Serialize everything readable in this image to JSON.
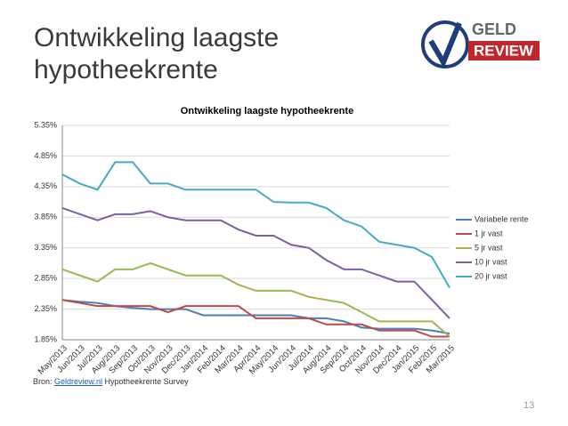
{
  "slide": {
    "title_lines": [
      "Ontwikkeling laagste",
      "hypotheekrente"
    ],
    "logo": {
      "top": "GELD",
      "bottom": "REVIEW"
    },
    "source": {
      "prefix": "Bron: ",
      "link": "Geldreview.nl",
      "suffix": " Hypotheekrente Survey"
    },
    "page_number": "13"
  },
  "chart_data": {
    "type": "line",
    "title": "Ontwikkeling laagste hypotheekrente",
    "categories": [
      "May/2013",
      "Jun/2013",
      "Jul/2013",
      "Aug/2013",
      "Sep/2013",
      "Oct/2013",
      "Nov/2013",
      "Dec/2013",
      "Jan/2014",
      "Feb/2014",
      "Mar/2014",
      "Apr/2014",
      "May/2014",
      "Jun/2014",
      "Jul/2014",
      "Aug/2014",
      "Sep/2014",
      "Oct/2014",
      "Nov/2014",
      "Dec/2014",
      "Jan/2015",
      "Feb/2015",
      "Mar/2015"
    ],
    "series": [
      {
        "name": "Variabele rente",
        "color": "#4a7ebb",
        "values": [
          2.5,
          2.47,
          2.45,
          2.4,
          2.37,
          2.35,
          2.35,
          2.35,
          2.25,
          2.25,
          2.25,
          2.25,
          2.25,
          2.25,
          2.2,
          2.2,
          2.15,
          2.05,
          2.03,
          2.03,
          2.03,
          2.0,
          1.95
        ]
      },
      {
        "name": "1 jr vast",
        "color": "#be4b48",
        "values": [
          2.5,
          2.45,
          2.4,
          2.4,
          2.4,
          2.4,
          2.3,
          2.4,
          2.4,
          2.4,
          2.4,
          2.2,
          2.2,
          2.2,
          2.2,
          2.1,
          2.1,
          2.1,
          2.0,
          2.0,
          2.0,
          1.9,
          1.9
        ]
      },
      {
        "name": "5 jr vast",
        "color": "#98b954",
        "values": [
          3.0,
          2.9,
          2.8,
          3.0,
          3.0,
          3.1,
          3.0,
          2.9,
          2.9,
          2.9,
          2.75,
          2.65,
          2.65,
          2.65,
          2.55,
          2.5,
          2.45,
          2.3,
          2.15,
          2.15,
          2.15,
          2.15,
          1.9
        ]
      },
      {
        "name": "10 jr vast",
        "color": "#7d60a0",
        "values": [
          4.0,
          3.9,
          3.8,
          3.9,
          3.9,
          3.95,
          3.85,
          3.8,
          3.8,
          3.8,
          3.65,
          3.55,
          3.55,
          3.4,
          3.35,
          3.15,
          3.0,
          3.0,
          2.9,
          2.8,
          2.8,
          2.5,
          2.2
        ]
      },
      {
        "name": "20 jr vast",
        "color": "#46aac5",
        "values": [
          4.55,
          4.4,
          4.3,
          4.75,
          4.75,
          4.4,
          4.4,
          4.3,
          4.3,
          4.3,
          4.3,
          4.3,
          4.1,
          4.09,
          4.09,
          4.0,
          3.8,
          3.7,
          3.45,
          3.4,
          3.35,
          3.2,
          2.7
        ]
      }
    ],
    "ylim": [
      1.85,
      5.35
    ],
    "yticks": [
      {
        "value": 1.85,
        "label": "1.85%"
      },
      {
        "value": 2.35,
        "label": "2.35%"
      },
      {
        "value": 2.85,
        "label": "2.85%"
      },
      {
        "value": 3.35,
        "label": "3.35%"
      },
      {
        "value": 3.85,
        "label": "3.85%"
      },
      {
        "value": 4.35,
        "label": "4.35%"
      },
      {
        "value": 4.85,
        "label": "4.85%"
      },
      {
        "value": 5.35,
        "label": "5.35%"
      }
    ],
    "grid": true,
    "legend": "right"
  }
}
